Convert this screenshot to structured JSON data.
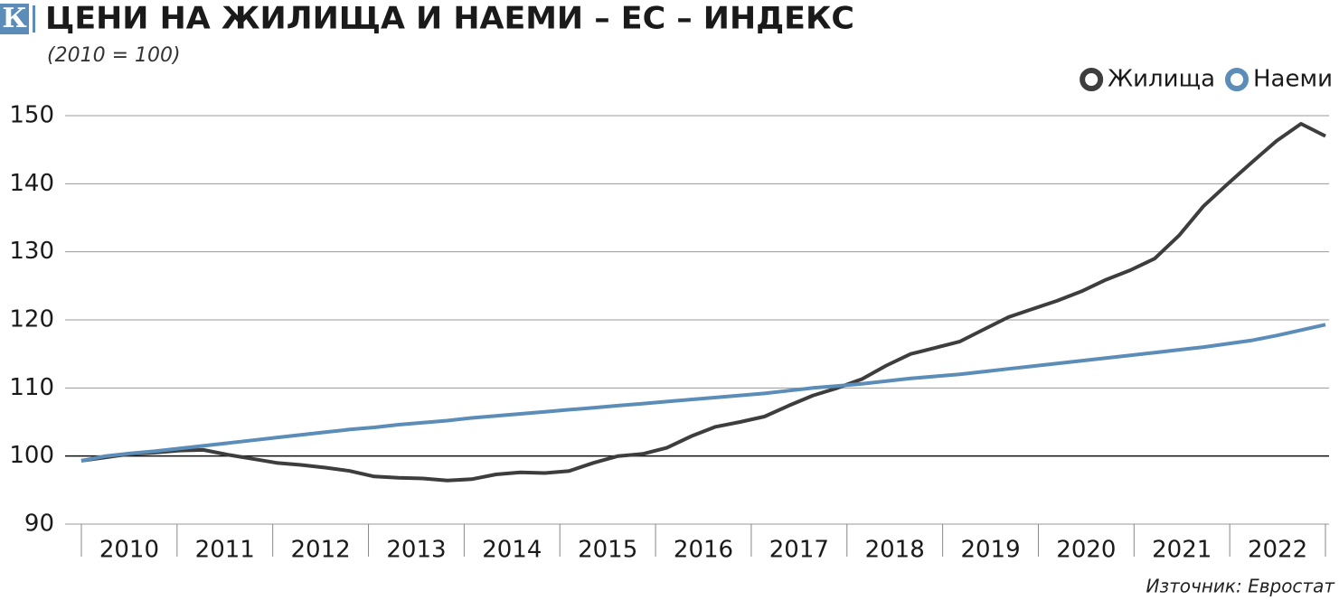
{
  "chart_data": {
    "type": "line",
    "logo": "К",
    "title": "ЦЕНИ НА ЖИЛИЩА И НАЕМИ – ЕС – ИНДЕКС",
    "subtitle": "(2010 = 100)",
    "source": "Източник: Евростат",
    "categories": [
      "2010",
      "2011",
      "2012",
      "2013",
      "2014",
      "2015",
      "2016",
      "2017",
      "2018",
      "2019",
      "2020",
      "2021",
      "2022"
    ],
    "x": [
      2010,
      2010.25,
      2010.5,
      2010.75,
      2011,
      2011.25,
      2011.5,
      2011.75,
      2012,
      2012.25,
      2012.5,
      2012.75,
      2013,
      2013.25,
      2013.5,
      2013.75,
      2014,
      2014.25,
      2014.5,
      2014.75,
      2015,
      2015.25,
      2015.5,
      2015.75,
      2016,
      2016.25,
      2016.5,
      2016.75,
      2017,
      2017.25,
      2017.5,
      2017.75,
      2018,
      2018.25,
      2018.5,
      2018.75,
      2019,
      2019.25,
      2019.5,
      2019.75,
      2020,
      2020.25,
      2020.5,
      2020.75,
      2021,
      2021.25,
      2021.5,
      2021.75,
      2022,
      2022.25,
      2022.5,
      2022.75
    ],
    "xlim": [
      2010,
      2022.75
    ],
    "series": [
      {
        "name": "Жилища",
        "color": "#3d3d3d",
        "values": [
          99.3,
          99.8,
          100.3,
          100.5,
          100.8,
          100.9,
          100.2,
          99.6,
          99.0,
          98.7,
          98.3,
          97.8,
          97.0,
          96.8,
          96.7,
          96.4,
          96.6,
          97.3,
          97.6,
          97.5,
          97.8,
          99.0,
          100.0,
          100.3,
          101.2,
          102.9,
          104.3,
          105.0,
          105.8,
          107.4,
          108.9,
          110.0,
          111.3,
          113.3,
          115.0,
          115.9,
          116.8,
          118.6,
          120.4,
          121.6,
          122.8,
          124.2,
          125.9,
          127.3,
          129.0,
          132.4,
          136.7,
          140.0,
          143.2,
          146.3,
          148.8,
          147.0
        ]
      },
      {
        "name": "Наеми",
        "color": "#5b8db8",
        "values": [
          99.3,
          100.0,
          100.4,
          100.7,
          101.1,
          101.5,
          101.9,
          102.3,
          102.7,
          103.1,
          103.5,
          103.9,
          104.2,
          104.6,
          104.9,
          105.2,
          105.6,
          105.9,
          106.2,
          106.5,
          106.8,
          107.1,
          107.4,
          107.7,
          108.0,
          108.3,
          108.6,
          108.9,
          109.2,
          109.6,
          110.0,
          110.3,
          110.6,
          111.0,
          111.4,
          111.7,
          112.0,
          112.4,
          112.8,
          113.2,
          113.6,
          114.0,
          114.4,
          114.8,
          115.2,
          115.6,
          116.0,
          116.5,
          117.0,
          117.7,
          118.5,
          119.3
        ]
      }
    ],
    "ylim": [
      90,
      150
    ],
    "yticks": [
      90,
      100,
      110,
      120,
      130,
      140,
      150
    ],
    "hline": 100,
    "grid": true,
    "legend": "top-right"
  }
}
